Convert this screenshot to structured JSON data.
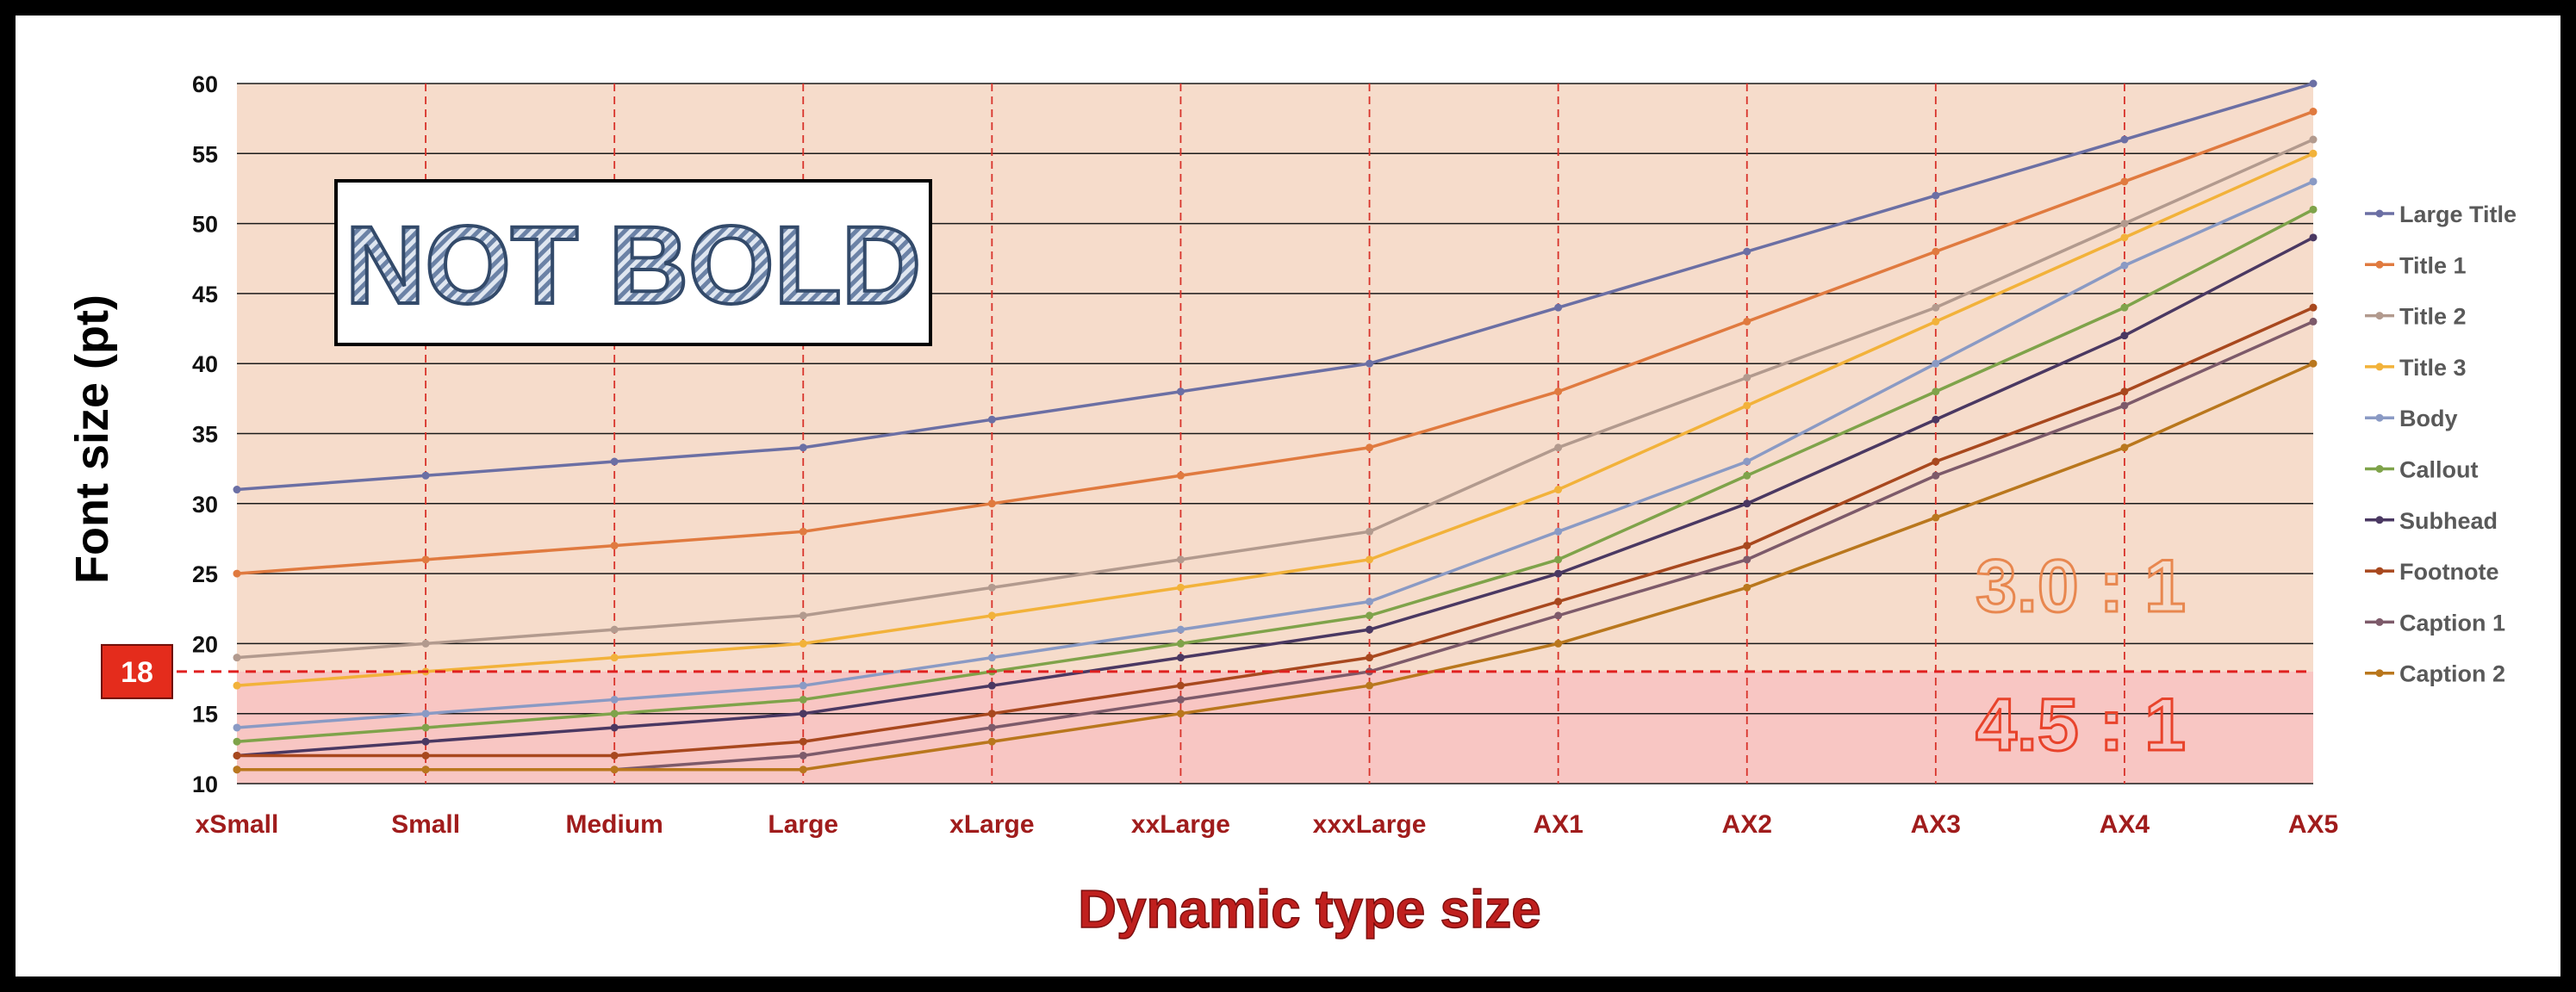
{
  "chart_data": {
    "type": "line",
    "title": "",
    "xlabel": "Dynamic type size",
    "ylabel": "Font size (pt)",
    "categories": [
      "xSmall",
      "Small",
      "Medium",
      "Large",
      "xLarge",
      "xxLarge",
      "xxxLarge",
      "AX1",
      "AX2",
      "AX3",
      "AX4",
      "AX5"
    ],
    "ylim": [
      10,
      60
    ],
    "yticks": [
      10,
      15,
      20,
      25,
      30,
      35,
      40,
      45,
      50,
      55,
      60
    ],
    "grid": true,
    "legend_position": "right",
    "series": [
      {
        "name": "Large Title",
        "color": "#6b6fa4",
        "values": [
          31,
          32,
          33,
          34,
          36,
          38,
          40,
          44,
          48,
          52,
          56,
          60
        ]
      },
      {
        "name": "Title 1",
        "color": "#e07a3f",
        "values": [
          25,
          26,
          27,
          28,
          30,
          32,
          34,
          38,
          43,
          48,
          53,
          58
        ]
      },
      {
        "name": "Title 2",
        "color": "#b29a8e",
        "values": [
          19,
          20,
          21,
          22,
          24,
          26,
          28,
          34,
          39,
          44,
          50,
          56
        ]
      },
      {
        "name": "Title 3",
        "color": "#f2b23a",
        "values": [
          17,
          18,
          19,
          20,
          22,
          24,
          26,
          31,
          37,
          43,
          49,
          55
        ]
      },
      {
        "name": "Body",
        "color": "#8a9ac4",
        "values": [
          14,
          15,
          16,
          17,
          19,
          21,
          23,
          28,
          33,
          40,
          47,
          53
        ]
      },
      {
        "name": "Callout",
        "color": "#7fa34a",
        "values": [
          13,
          14,
          15,
          16,
          18,
          20,
          22,
          26,
          32,
          38,
          44,
          51
        ]
      },
      {
        "name": "Subhead",
        "color": "#4a3862",
        "values": [
          12,
          13,
          14,
          15,
          17,
          19,
          21,
          25,
          30,
          36,
          42,
          49
        ]
      },
      {
        "name": "Footnote",
        "color": "#a8481e",
        "values": [
          12,
          12,
          12,
          13,
          15,
          17,
          19,
          23,
          27,
          33,
          38,
          44
        ]
      },
      {
        "name": "Caption 1",
        "color": "#7d5a6a",
        "values": [
          11,
          11,
          11,
          12,
          14,
          16,
          18,
          22,
          26,
          32,
          37,
          43
        ]
      },
      {
        "name": "Caption 2",
        "color": "#b9771d",
        "values": [
          11,
          11,
          11,
          11,
          13,
          15,
          17,
          20,
          24,
          29,
          34,
          40
        ]
      }
    ],
    "threshold": {
      "value": 18,
      "label": "18"
    },
    "annotations": {
      "not_bold": "NOT BOLD",
      "ratio_upper": "3.0 : 1",
      "ratio_lower": "4.5 : 1"
    },
    "colors": {
      "upper_region": "#f6dccb",
      "lower_region": "#f8c6c3",
      "threshold_line": "#e02020",
      "badge": "#e42c1c",
      "ratio_upper": "#e8874f",
      "ratio_lower": "#e8432b"
    }
  }
}
